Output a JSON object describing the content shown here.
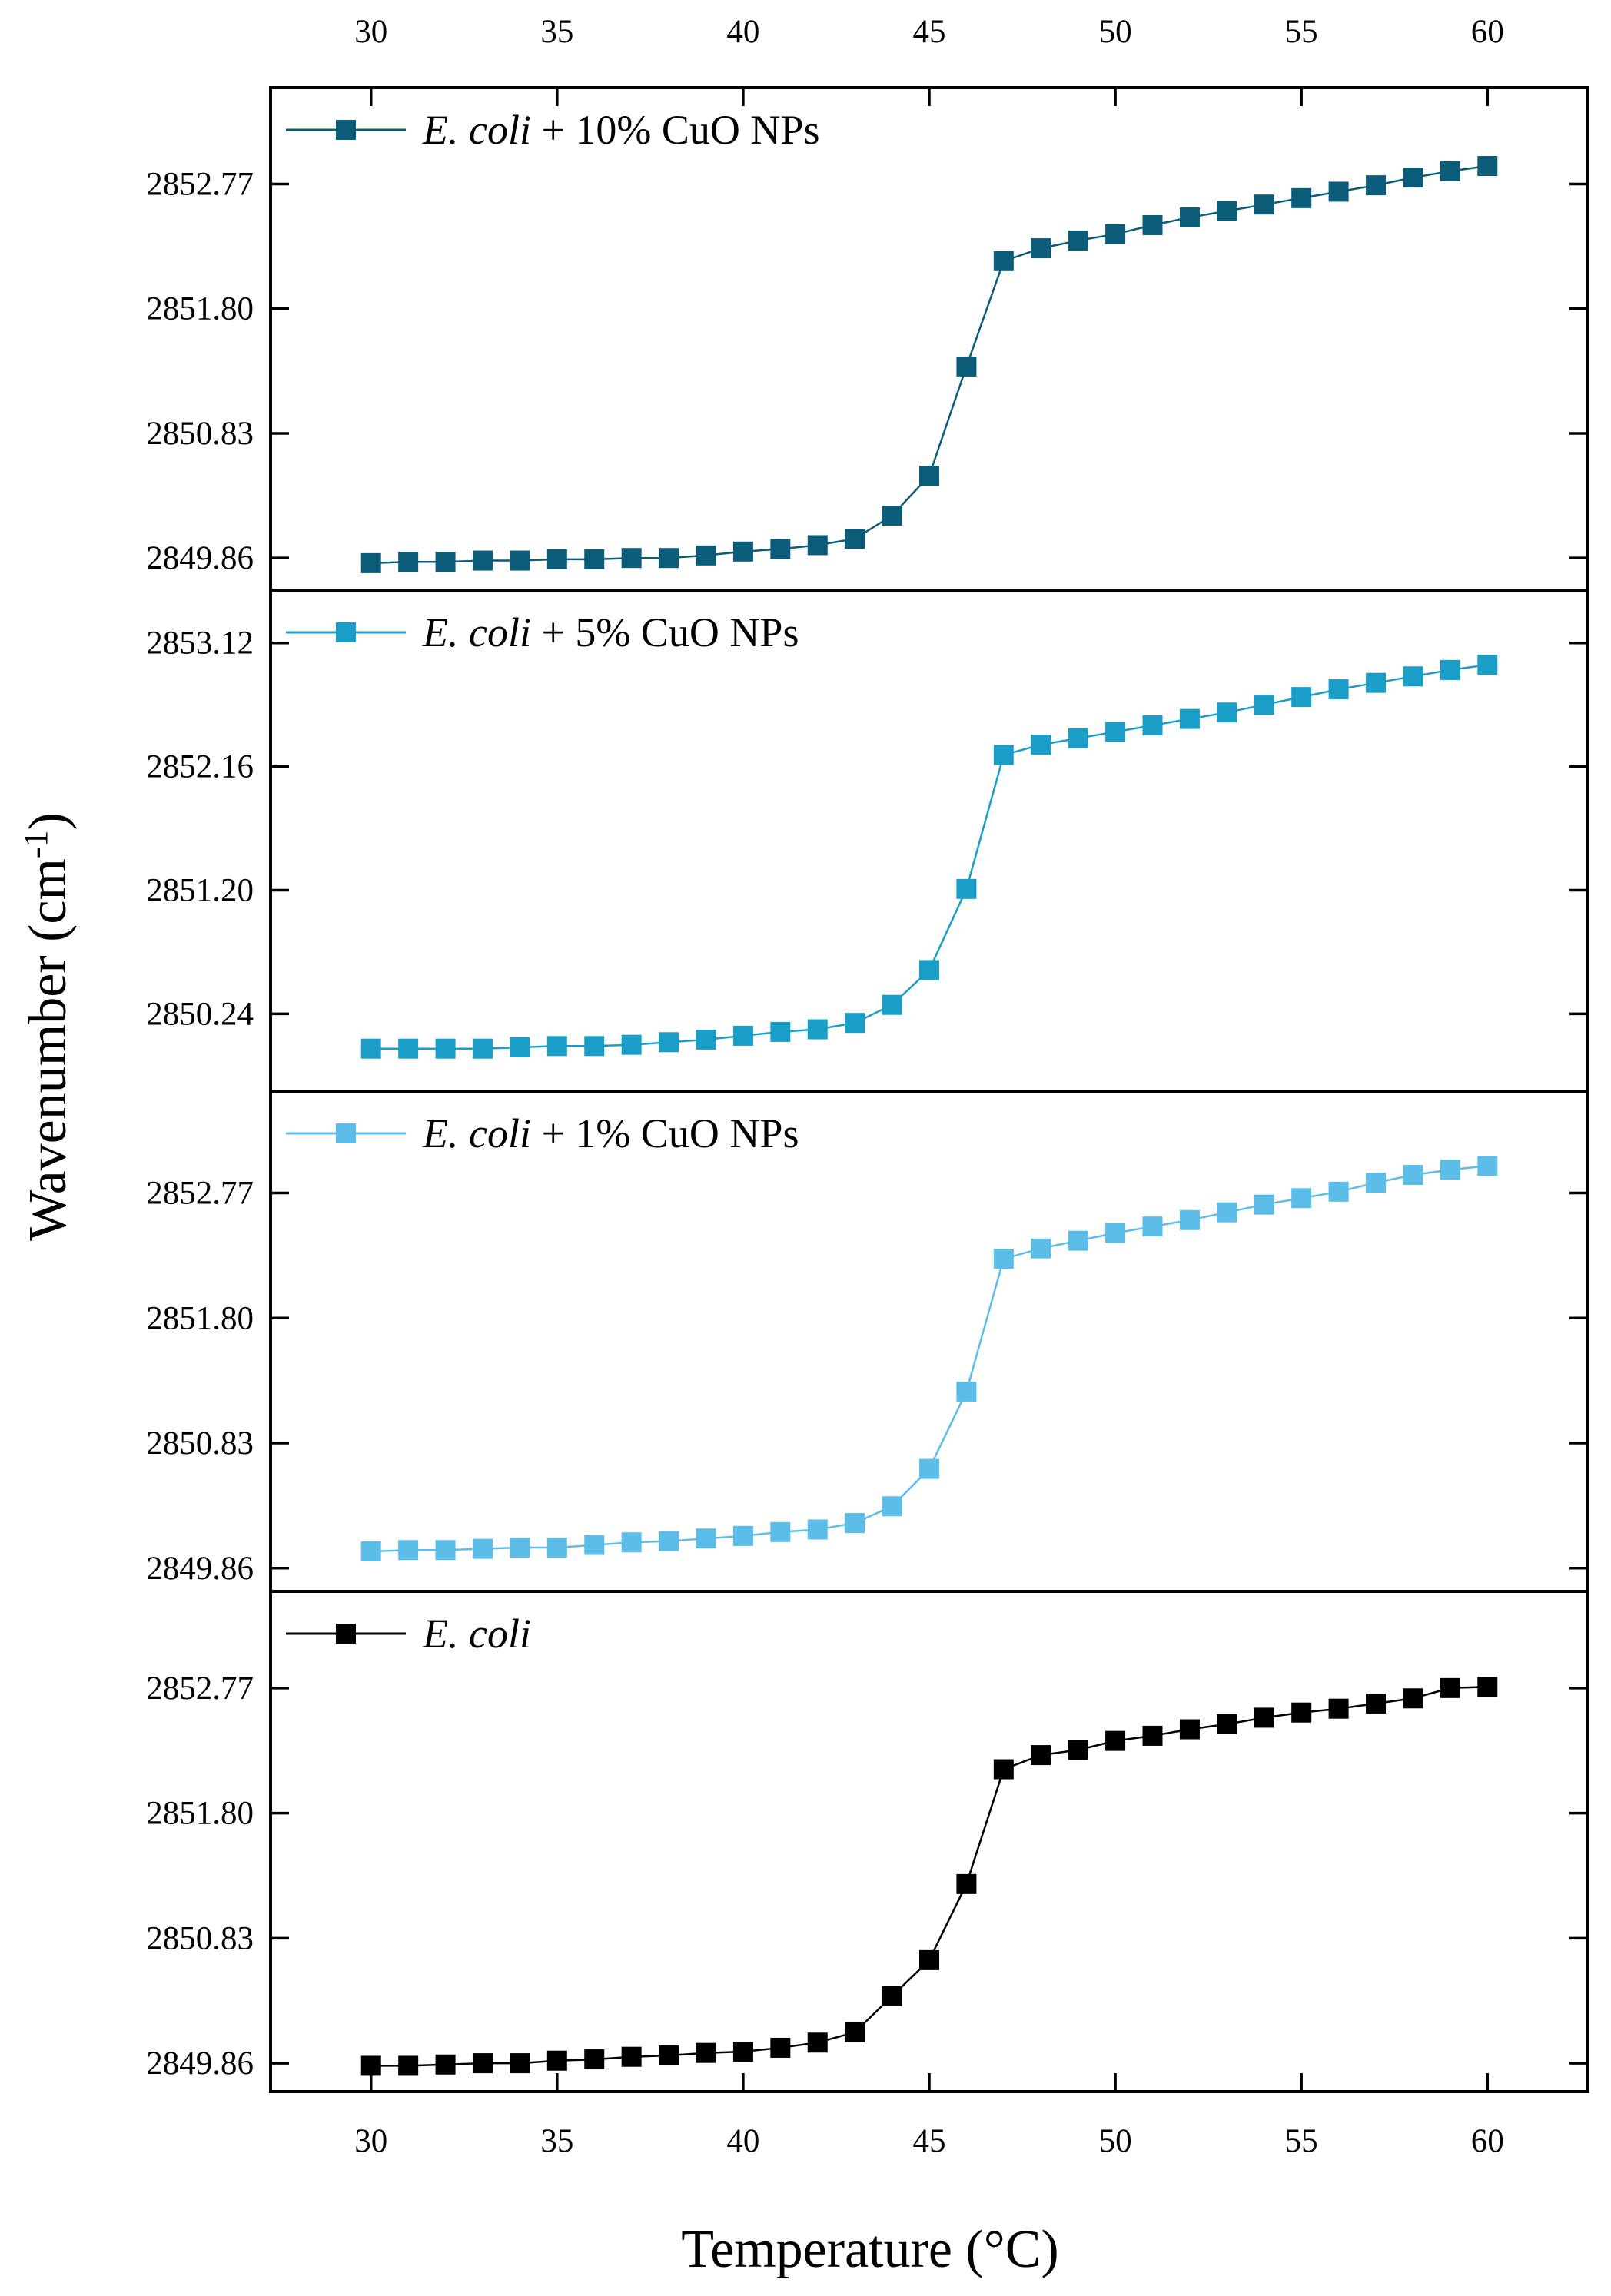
{
  "figure": {
    "xlabel": "Temperature (°C)",
    "ylabel_main": "Wavenumber (cm",
    "ylabel_sup": "-1",
    "ylabel_close": ")"
  },
  "chart_data": [
    {
      "type": "line",
      "name": "E. coli + 10% CuO NPs",
      "legend_italic": "E. coli",
      "legend_rest": " + 10% CuO NPs",
      "color": "#0b5c78",
      "marker": "square",
      "x": [
        30,
        31,
        32,
        33,
        34,
        35,
        36,
        37,
        38,
        39,
        40,
        41,
        42,
        43,
        44,
        45,
        46,
        47,
        48,
        49,
        50,
        51,
        52,
        53,
        54,
        55,
        56,
        57,
        58,
        59,
        60
      ],
      "y": [
        2849.82,
        2849.83,
        2849.83,
        2849.84,
        2849.84,
        2849.85,
        2849.85,
        2849.86,
        2849.86,
        2849.88,
        2849.91,
        2849.93,
        2849.96,
        2850.01,
        2850.19,
        2850.5,
        2851.35,
        2852.17,
        2852.27,
        2852.33,
        2852.38,
        2852.45,
        2852.51,
        2852.56,
        2852.61,
        2852.66,
        2852.71,
        2852.76,
        2852.82,
        2852.87,
        2852.91
      ],
      "xlim": [
        27.3,
        62.7
      ],
      "ylim": [
        2849.61,
        2853.52
      ],
      "xticks": [
        30,
        35,
        40,
        45,
        50,
        55,
        60
      ],
      "yticks": [
        2849.86,
        2850.83,
        2851.8,
        2852.77
      ],
      "ytick_labels": [
        "2849.86",
        "2850.83",
        "2851.80",
        "2852.77"
      ]
    },
    {
      "type": "line",
      "name": "E. coli + 5% CuO NPs",
      "legend_italic": "E. coli",
      "legend_rest": " + 5% CuO NPs",
      "color": "#1a9ec8",
      "marker": "square",
      "x": [
        30,
        31,
        32,
        33,
        34,
        35,
        36,
        37,
        38,
        39,
        40,
        41,
        42,
        43,
        44,
        45,
        46,
        47,
        48,
        49,
        50,
        51,
        52,
        53,
        54,
        55,
        56,
        57,
        58,
        59,
        60
      ],
      "y": [
        2849.97,
        2849.97,
        2849.97,
        2849.97,
        2849.98,
        2849.99,
        2849.99,
        2850.0,
        2850.02,
        2850.04,
        2850.07,
        2850.1,
        2850.12,
        2850.17,
        2850.31,
        2850.58,
        2851.21,
        2852.25,
        2852.33,
        2852.38,
        2852.43,
        2852.48,
        2852.53,
        2852.58,
        2852.64,
        2852.7,
        2852.76,
        2852.81,
        2852.86,
        2852.91,
        2852.95
      ],
      "xlim": [
        27.3,
        62.7
      ],
      "ylim": [
        2849.64,
        2853.53
      ],
      "xticks": [
        30,
        35,
        40,
        45,
        50,
        55,
        60
      ],
      "yticks": [
        2850.24,
        2851.2,
        2852.16,
        2853.12
      ],
      "ytick_labels": [
        "2850.24",
        "2851.20",
        "2852.16",
        "2853.12"
      ]
    },
    {
      "type": "line",
      "name": "E. coli + 1% CuO NPs",
      "legend_italic": "E. coli",
      "legend_rest": " + 1% CuO NPs",
      "color": "#5bbde8",
      "marker": "square",
      "x": [
        30,
        31,
        32,
        33,
        34,
        35,
        36,
        37,
        38,
        39,
        40,
        41,
        42,
        43,
        44,
        45,
        46,
        47,
        48,
        49,
        50,
        51,
        52,
        53,
        54,
        55,
        56,
        57,
        58,
        59,
        60
      ],
      "y": [
        2849.99,
        2850.0,
        2850.0,
        2850.01,
        2850.02,
        2850.02,
        2850.04,
        2850.06,
        2850.07,
        2850.09,
        2850.11,
        2850.14,
        2850.16,
        2850.21,
        2850.34,
        2850.63,
        2851.23,
        2852.26,
        2852.34,
        2852.4,
        2852.46,
        2852.51,
        2852.56,
        2852.62,
        2852.68,
        2852.73,
        2852.78,
        2852.85,
        2852.91,
        2852.95,
        2852.98
      ],
      "xlim": [
        27.3,
        62.7
      ],
      "ylim": [
        2849.68,
        2853.56
      ],
      "xticks": [
        30,
        35,
        40,
        45,
        50,
        55,
        60
      ],
      "yticks": [
        2849.86,
        2850.83,
        2851.8,
        2852.77
      ],
      "ytick_labels": [
        "2849.86",
        "2850.83",
        "2851.80",
        "2852.77"
      ]
    },
    {
      "type": "line",
      "name": "E. coli",
      "legend_italic": "E. coli",
      "legend_rest": "",
      "color": "#000000",
      "marker": "square",
      "x": [
        30,
        31,
        32,
        33,
        34,
        35,
        36,
        37,
        38,
        39,
        40,
        41,
        42,
        43,
        44,
        45,
        46,
        47,
        48,
        49,
        50,
        51,
        52,
        53,
        54,
        55,
        56,
        57,
        58,
        59,
        60
      ],
      "y": [
        2849.84,
        2849.84,
        2849.85,
        2849.86,
        2849.86,
        2849.88,
        2849.89,
        2849.91,
        2849.92,
        2849.94,
        2849.95,
        2849.98,
        2850.02,
        2850.1,
        2850.38,
        2850.66,
        2851.25,
        2852.14,
        2852.25,
        2852.29,
        2852.36,
        2852.4,
        2852.45,
        2852.49,
        2852.54,
        2852.58,
        2852.61,
        2852.65,
        2852.69,
        2852.77,
        2852.78
      ],
      "xlim": [
        27.3,
        62.7
      ],
      "ylim": [
        2849.64,
        2853.52
      ],
      "xticks": [
        30,
        35,
        40,
        45,
        50,
        55,
        60
      ],
      "yticks": [
        2849.86,
        2850.83,
        2851.8,
        2852.77
      ],
      "ytick_labels": [
        "2849.86",
        "2850.83",
        "2851.80",
        "2852.77"
      ]
    }
  ]
}
